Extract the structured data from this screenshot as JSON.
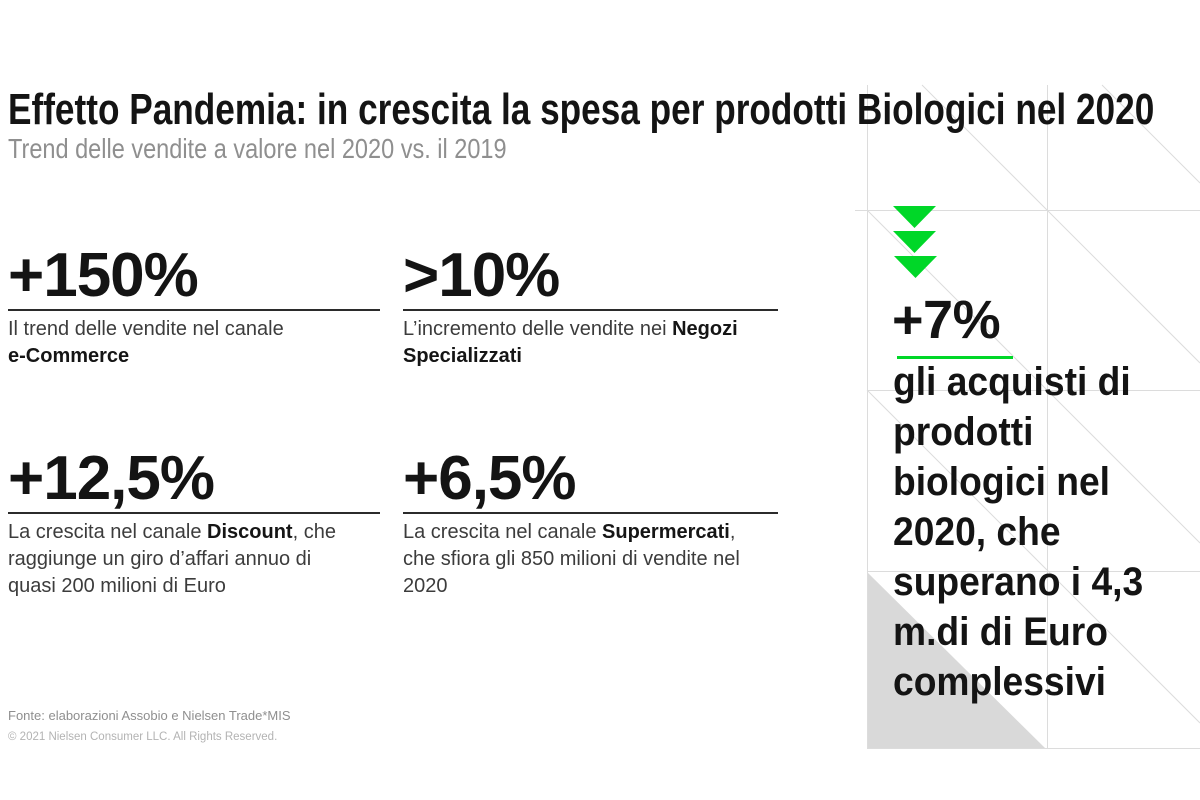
{
  "header": {
    "title": "Effetto Pandemia: in crescita la spesa per prodotti Biologici nel 2020",
    "subtitle": "Trend delle vendite a valore nel 2020 vs. il 2019"
  },
  "stats": [
    {
      "value": "+150%",
      "desc": [
        {
          "t": "Il trend delle vendite nel canale\n",
          "b": false
        },
        {
          "t": "e-Commerce",
          "b": true
        }
      ]
    },
    {
      "value": ">10%",
      "desc": [
        {
          "t": "L’incremento delle vendite nei ",
          "b": false
        },
        {
          "t": "Negozi\nSpecializzati",
          "b": true
        }
      ]
    },
    {
      "value": "+12,5%",
      "desc": [
        {
          "t": "La crescita nel canale ",
          "b": false
        },
        {
          "t": "Discount",
          "b": true
        },
        {
          "t": ", che\nraggiunge un giro d’affari annuo di\nquasi 200 milioni di Euro",
          "b": false
        }
      ]
    },
    {
      "value": "+6,5%",
      "desc": [
        {
          "t": "La crescita nel canale ",
          "b": false
        },
        {
          "t": "Supermercati",
          "b": true
        },
        {
          "t": ",\nche sfiora gli 850 milioni di vendite nel\n2020",
          "b": false
        }
      ]
    }
  ],
  "highlight": {
    "value": "+7%",
    "text": "gli acquisti di\nprodotti\nbiologici nel\n2020, che\nsuperano i 4,3\nm.di di Euro\ncomplessivi",
    "arrow_icon_count": 3
  },
  "footer": {
    "source": "Fonte: elaborazioni Assobio e Nielsen Trade*MIS",
    "copyright": "© 2021 Nielsen Consumer LLC. All Rights Reserved."
  },
  "colors": {
    "accent_green": "#00d728",
    "grid_line": "#dcdcdc",
    "gray_triangle": "#d9d9d9",
    "rule_dark": "#2b2b2b",
    "text_dark": "#141414",
    "text_body": "#3c3c3c",
    "text_gray": "#8f8f8f",
    "text_light_gray": "#b3b3b3"
  }
}
